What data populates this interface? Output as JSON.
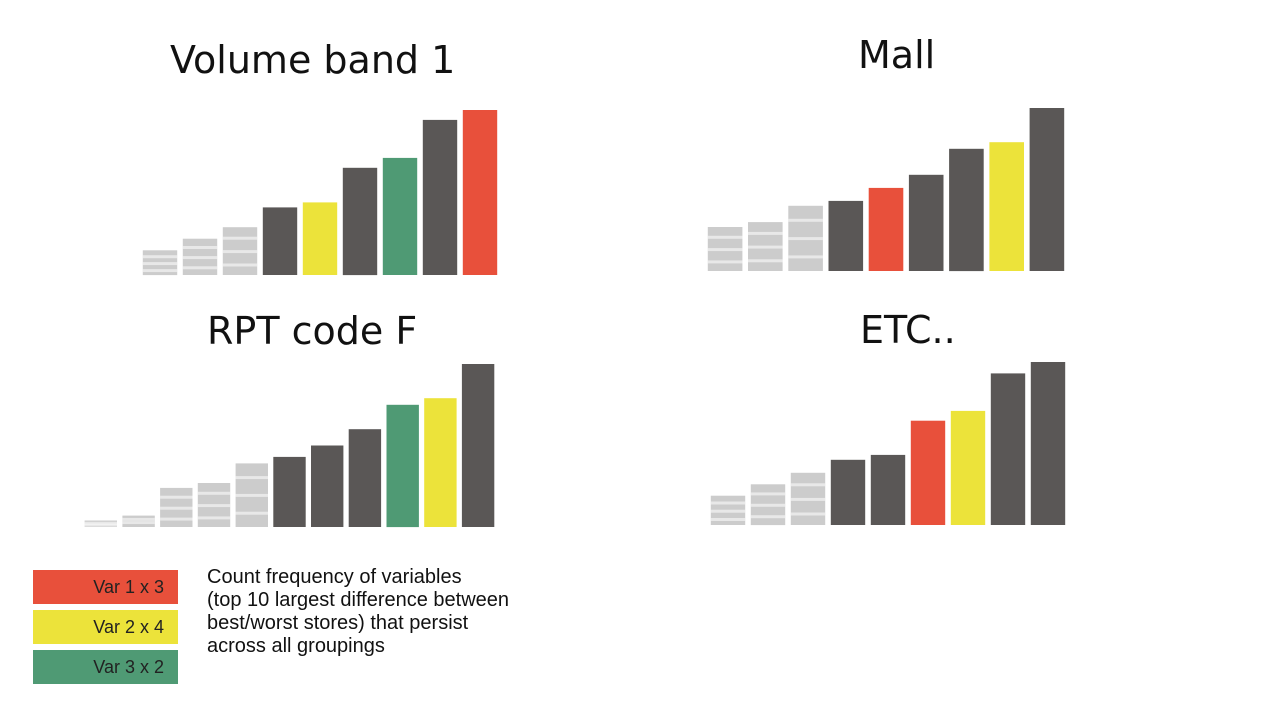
{
  "colors": {
    "dark": "#5a5756",
    "red": "#e8503b",
    "yellow": "#ece33a",
    "green": "#4f9a74",
    "ghost": "#8f8f8f"
  },
  "chart_data": [
    {
      "type": "bar",
      "title": "Volume band 1",
      "ylim": [
        0,
        100
      ],
      "values": [
        15,
        22,
        29,
        41,
        44,
        65,
        71,
        94,
        100
      ],
      "highlights": [
        "ghost",
        "ghost",
        "ghost",
        "dark",
        "yellow",
        "dark",
        "green",
        "dark",
        "red"
      ]
    },
    {
      "type": "bar",
      "title": "Mall",
      "ylim": [
        0,
        100
      ],
      "values": [
        27,
        30,
        40,
        43,
        51,
        59,
        75,
        79,
        100
      ],
      "highlights": [
        "ghost",
        "ghost",
        "ghost",
        "dark",
        "red",
        "dark",
        "dark",
        "yellow",
        "dark"
      ]
    },
    {
      "type": "bar",
      "title": "RPT code F",
      "ylim": [
        0,
        100
      ],
      "values": [
        4,
        7,
        24,
        27,
        39,
        43,
        50,
        60,
        75,
        79,
        100
      ],
      "highlights": [
        "ghost",
        "ghost",
        "ghost",
        "ghost",
        "ghost",
        "dark",
        "dark",
        "dark",
        "green",
        "yellow",
        "dark"
      ]
    },
    {
      "type": "bar",
      "title": "ETC..",
      "ylim": [
        0,
        100
      ],
      "values": [
        18,
        25,
        32,
        40,
        43,
        64,
        70,
        93,
        100
      ],
      "highlights": [
        "ghost",
        "ghost",
        "ghost",
        "dark",
        "dark",
        "red",
        "yellow",
        "dark",
        "dark"
      ]
    }
  ],
  "legend": [
    {
      "label": "Var 1 x 3",
      "color": "#e8503b"
    },
    {
      "label": "Var 2 x 4",
      "color": "#ece33a"
    },
    {
      "label": "Var 3 x 2",
      "color": "#4f9a74"
    }
  ],
  "description": {
    "lines": [
      "Count frequency of variables",
      "(top 10 largest difference between",
      "best/worst stores) that persist",
      "across all groupings"
    ]
  }
}
